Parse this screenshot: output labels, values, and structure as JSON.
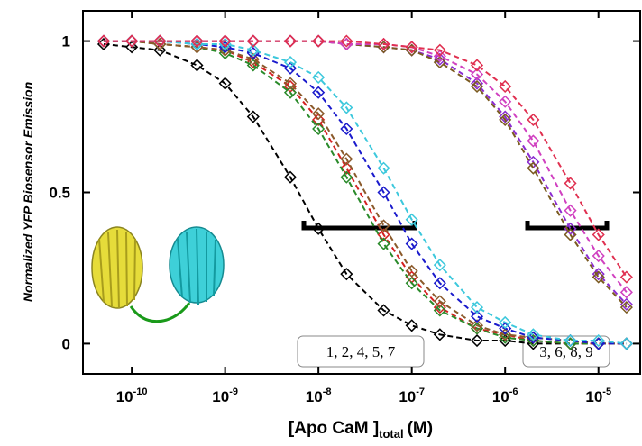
{
  "chart_data": {
    "type": "scatter",
    "y_label": "Normalized YFP Biosensor Emission",
    "x_label": "[Apo CaM ]",
    "x_label_subscript": "total",
    "x_label_suffix": "(M)",
    "log_x": true,
    "xlim": [
      3e-11,
      2.8e-05
    ],
    "ylim": [
      -0.1,
      1.1
    ],
    "xticks": [
      {
        "value": 1e-10,
        "label": "10",
        "exponent": "-10"
      },
      {
        "value": 1e-09,
        "label": "10",
        "exponent": "-9"
      },
      {
        "value": 1e-08,
        "label": "10",
        "exponent": "-8"
      },
      {
        "value": 1e-07,
        "label": "10",
        "exponent": "-7"
      },
      {
        "value": 1e-06,
        "label": "10",
        "exponent": "-6"
      },
      {
        "value": 1e-05,
        "label": "10",
        "exponent": "-5"
      }
    ],
    "yticks": [
      0,
      0.5,
      1
    ],
    "annotations": [
      "1, 2, 4, 5, 7",
      "3, 6, 8, 9"
    ],
    "x": [
      5e-11,
      1e-10,
      2e-10,
      5e-10,
      1e-09,
      2e-09,
      5e-09,
      1e-08,
      2e-08,
      5e-08,
      1e-07,
      2e-07,
      5e-07,
      1e-06,
      2e-06,
      5e-06,
      1e-05,
      2e-05
    ],
    "series": [
      {
        "color": "#000000",
        "values": [
          0.99,
          0.98,
          0.97,
          0.92,
          0.86,
          0.75,
          0.55,
          0.38,
          0.23,
          0.11,
          0.06,
          0.03,
          0.01,
          0.01,
          0,
          0,
          0,
          0
        ]
      },
      {
        "color": "#d42020",
        "values": [
          1,
          1,
          0.99,
          0.98,
          0.97,
          0.93,
          0.85,
          0.74,
          0.58,
          0.36,
          0.22,
          0.12,
          0.05,
          0.03,
          0.01,
          0,
          0,
          0
        ]
      },
      {
        "color": "#2a8a2a",
        "values": [
          1,
          1,
          0.99,
          0.98,
          0.96,
          0.92,
          0.83,
          0.71,
          0.55,
          0.33,
          0.2,
          0.11,
          0.05,
          0.02,
          0.01,
          0,
          0,
          0
        ]
      },
      {
        "color": "#8b5a2b",
        "values": [
          1,
          1,
          0.99,
          0.98,
          0.97,
          0.94,
          0.86,
          0.76,
          0.61,
          0.39,
          0.24,
          0.14,
          0.06,
          0.03,
          0.02,
          0.01,
          0,
          0
        ]
      },
      {
        "color": "#1a1acc",
        "values": [
          1,
          1,
          1,
          0.99,
          0.98,
          0.96,
          0.91,
          0.83,
          0.71,
          0.5,
          0.33,
          0.2,
          0.09,
          0.05,
          0.02,
          0.01,
          0,
          0
        ]
      },
      {
        "color": "#3cc8dc",
        "values": [
          1,
          1,
          1,
          0.99,
          0.99,
          0.97,
          0.93,
          0.88,
          0.78,
          0.58,
          0.41,
          0.26,
          0.12,
          0.07,
          0.03,
          0.01,
          0.01,
          0
        ]
      },
      {
        "color": "#8b2bd0",
        "values": [
          1,
          1,
          1,
          1,
          1,
          1,
          1,
          1,
          0.99,
          0.98,
          0.97,
          0.94,
          0.86,
          0.75,
          0.6,
          0.38,
          0.23,
          0.13
        ]
      },
      {
        "color": "#7a5a20",
        "values": [
          1,
          1,
          1,
          1,
          1,
          1,
          1,
          1,
          0.99,
          0.98,
          0.97,
          0.93,
          0.85,
          0.74,
          0.58,
          0.36,
          0.22,
          0.12
        ]
      },
      {
        "color": "#d040c0",
        "values": [
          1,
          1,
          1,
          1,
          1,
          1,
          1,
          1,
          0.99,
          0.99,
          0.98,
          0.95,
          0.89,
          0.8,
          0.67,
          0.44,
          0.29,
          0.17
        ]
      },
      {
        "color": "#e03050",
        "values": [
          1,
          1,
          1,
          1,
          1,
          1,
          1,
          1,
          1,
          0.99,
          0.98,
          0.97,
          0.92,
          0.85,
          0.74,
          0.53,
          0.36,
          0.22
        ]
      }
    ]
  }
}
